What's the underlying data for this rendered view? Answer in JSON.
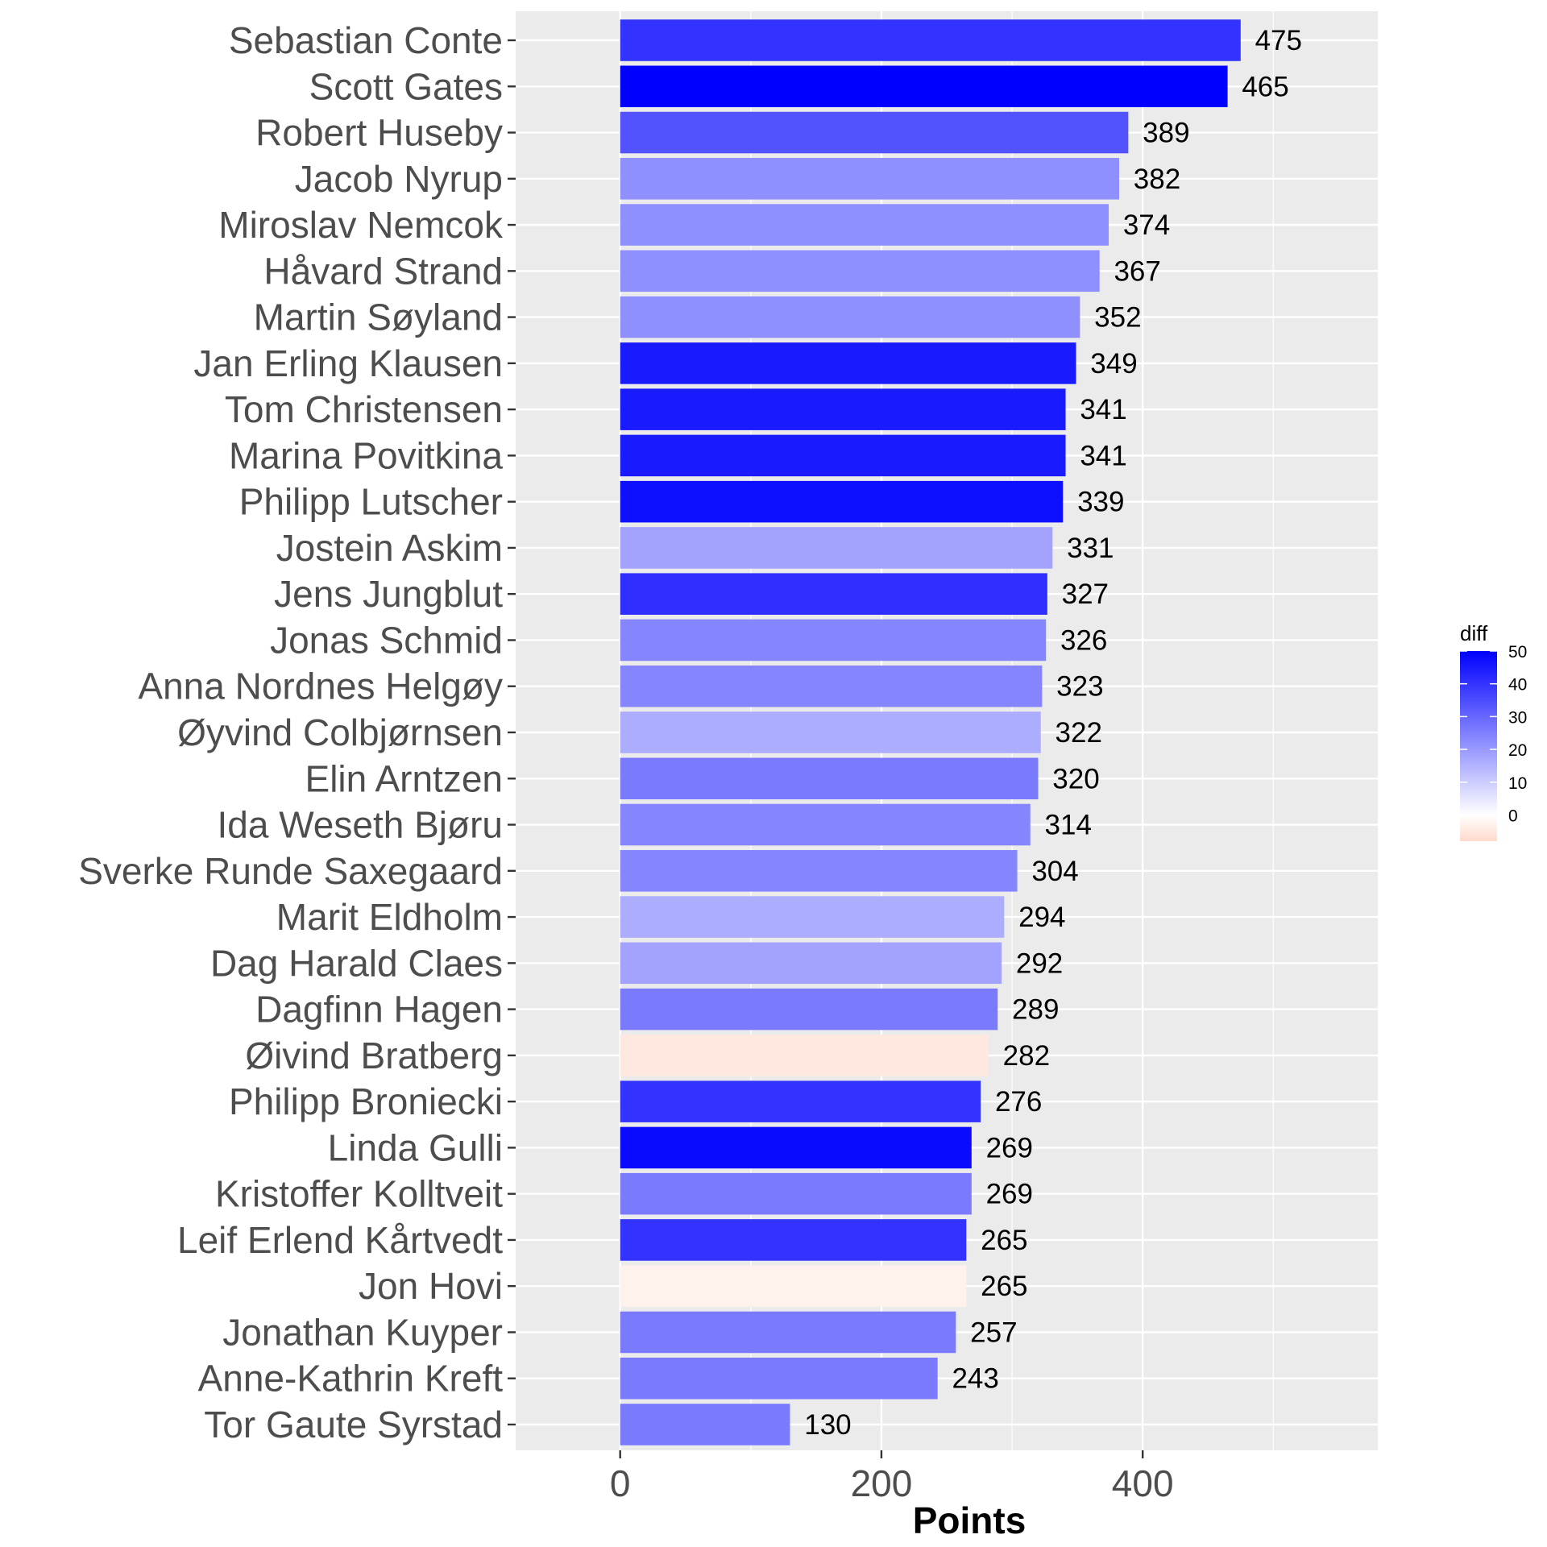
{
  "chart_data": {
    "type": "bar",
    "orientation": "horizontal",
    "title": "",
    "xlabel": "Points",
    "ylabel": "",
    "xlim": [
      -80,
      580
    ],
    "xticks": [
      0,
      200,
      400
    ],
    "xtick_labels": [
      "0",
      "200",
      "400"
    ],
    "categories": [
      "Sebastian Conte",
      "Scott Gates",
      "Robert Huseby",
      "Jacob Nyrup",
      "Miroslav Nemcok",
      "Håvard Strand",
      "Martin Søyland",
      "Jan Erling Klausen",
      "Tom Christensen",
      "Marina Povitkina",
      "Philipp Lutscher",
      "Jostein Askim",
      "Jens Jungblut",
      "Jonas Schmid",
      "Anna Nordnes Helgøy",
      "Øyvind Colbjørnsen",
      "Elin Arntzen",
      "Ida Weseth Bjøru",
      "Sverke Runde Saxegaard",
      "Marit Eldholm",
      "Dag Harald Claes",
      "Dagfinn Hagen",
      "Øivind Bratberg",
      "Philipp Broniecki",
      "Linda Gulli",
      "Kristoffer Kolltveit",
      "Leif Erlend Kårtvedt",
      "Jon Hovi",
      "Jonathan Kuyper",
      "Anne-Kathrin Kreft",
      "Tor Gaute Syrstad"
    ],
    "values": [
      475,
      465,
      389,
      382,
      374,
      367,
      352,
      349,
      341,
      341,
      339,
      331,
      327,
      326,
      323,
      322,
      320,
      314,
      304,
      294,
      292,
      289,
      282,
      276,
      269,
      269,
      265,
      265,
      257,
      243,
      130
    ],
    "data_labels": [
      "475",
      "465",
      "389",
      "382",
      "374",
      "367",
      "352",
      "349",
      "341",
      "341",
      "339",
      "331",
      "327",
      "326",
      "323",
      "322",
      "320",
      "314",
      "304",
      "294",
      "292",
      "289",
      "282",
      "276",
      "269",
      "269",
      "265",
      "265",
      "257",
      "243",
      "130"
    ],
    "fill_variable": "diff",
    "fill_values": [
      40,
      50,
      34,
      22,
      22,
      22,
      22,
      45,
      45,
      45,
      47,
      18,
      41,
      24,
      24,
      16,
      26,
      24,
      24,
      16,
      18,
      26,
      -5,
      40,
      48,
      26,
      40,
      -3,
      26,
      26,
      26
    ],
    "legend": {
      "title": "diff",
      "position": "right",
      "ticks": [
        50,
        40,
        30,
        20,
        10,
        0
      ],
      "tick_labels": [
        "50",
        "40",
        "30",
        "20",
        "10",
        "0"
      ],
      "range": [
        -8,
        50
      ],
      "colors": {
        "low": "#ffdacc",
        "mid": "#ffffff",
        "high": "#0000ff"
      }
    },
    "grid": true,
    "panel_background": "#ebebeb",
    "grid_color": "#ffffff"
  }
}
